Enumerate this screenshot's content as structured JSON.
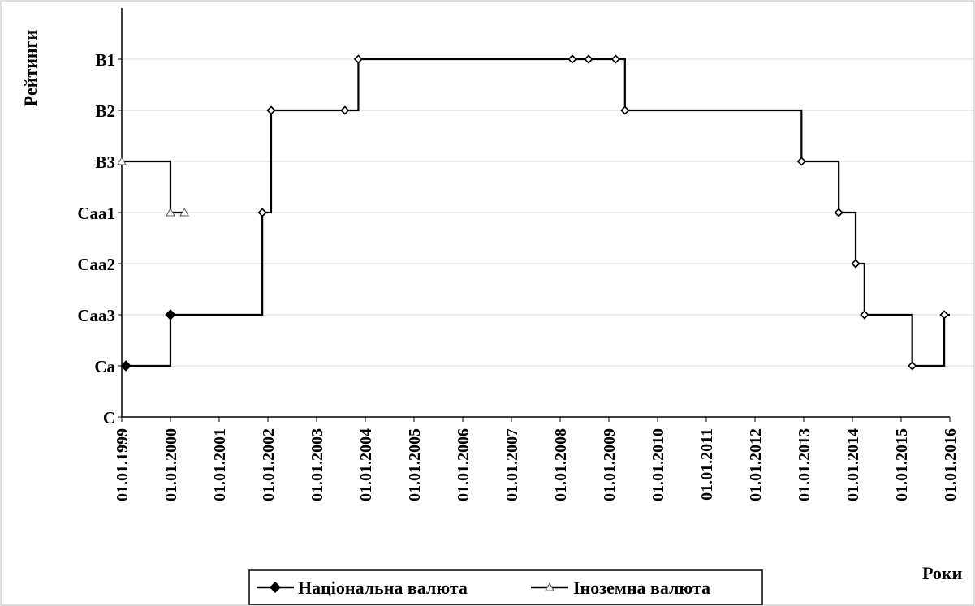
{
  "chart_data": {
    "type": "line",
    "title": "",
    "xlabel": "Роки",
    "ylabel": "Рейтинги",
    "y_categories": [
      "C",
      "Ca",
      "Caa3",
      "Caa2",
      "Caa1",
      "B3",
      "B2",
      "B1"
    ],
    "x_ticks": [
      "01.01.1999",
      "01.01.2000",
      "01.01.2001",
      "01.01.2002",
      "01.01.2003",
      "01.01.2004",
      "01.01.2005",
      "01.01.2006",
      "01.01.2007",
      "01.01.2008",
      "01.01.2009",
      "01.01.2010",
      "01.01.2011",
      "01.01.2012",
      "01.01.2013",
      "01.01.2014",
      "01.01.2015",
      "01.01.2016"
    ],
    "xlim": [
      "1999-01-01",
      "2016-01-01"
    ],
    "grid": "horizontal",
    "legend_position": "bottom",
    "step": true,
    "series": [
      {
        "name": "Національна валюта",
        "marker": "diamond",
        "color": "#000000",
        "points": [
          {
            "x": "1999-02-01",
            "y": "Ca"
          },
          {
            "x": "2000-01-01",
            "y": "Caa3"
          },
          {
            "x": "2001-11-20",
            "y": "Caa1"
          },
          {
            "x": "2002-01-25",
            "y": "B2"
          },
          {
            "x": "2003-08-01",
            "y": "B2"
          },
          {
            "x": "2003-11-10",
            "y": "B1"
          },
          {
            "x": "2008-04-01",
            "y": "B1"
          },
          {
            "x": "2008-08-01",
            "y": "B1"
          },
          {
            "x": "2009-02-20",
            "y": "B1"
          },
          {
            "x": "2009-05-01",
            "y": "B2"
          },
          {
            "x": "2012-12-15",
            "y": "B3"
          },
          {
            "x": "2013-09-20",
            "y": "Caa1"
          },
          {
            "x": "2014-01-25",
            "y": "Caa2"
          },
          {
            "x": "2014-04-01",
            "y": "Caa3"
          },
          {
            "x": "2015-03-25",
            "y": "Ca"
          },
          {
            "x": "2015-11-20",
            "y": "Caa3"
          }
        ]
      },
      {
        "name": "Іноземна валюта",
        "marker": "triangle",
        "color": "#000000",
        "points": [
          {
            "x": "1999-01-01",
            "y": "B3"
          },
          {
            "x": "2000-01-01",
            "y": "Caa1"
          },
          {
            "x": "2000-04-15",
            "y": "Caa1"
          }
        ]
      }
    ]
  }
}
